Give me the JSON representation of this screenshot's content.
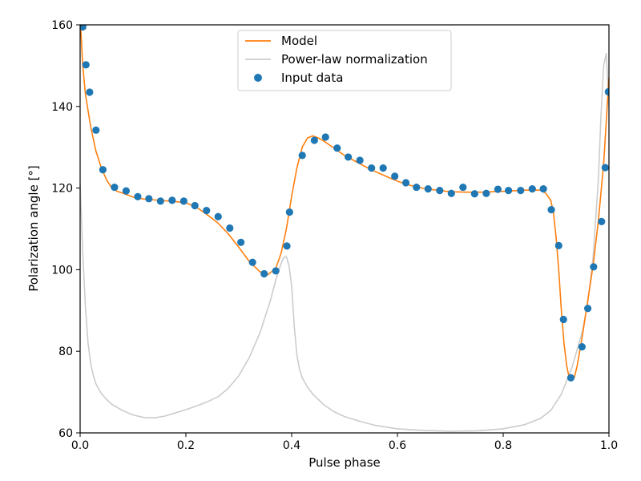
{
  "chart_data": {
    "type": "line",
    "xlabel": "Pulse phase",
    "ylabel": "Polarization angle [°]",
    "xlim": [
      0,
      1
    ],
    "ylim": [
      60,
      160
    ],
    "xticks": [
      "0.0",
      "0.2",
      "0.4",
      "0.6",
      "0.8",
      "1.0"
    ],
    "yticks": [
      "60",
      "80",
      "100",
      "120",
      "140",
      "160"
    ],
    "grid": false,
    "legend_position": "top-center",
    "series": [
      {
        "name": "Model",
        "kind": "line",
        "color": "#ff7f0e",
        "x": [
          0.0,
          0.005,
          0.01,
          0.02,
          0.03,
          0.04,
          0.05,
          0.06,
          0.07,
          0.08,
          0.1,
          0.12,
          0.15,
          0.18,
          0.2,
          0.22,
          0.24,
          0.26,
          0.28,
          0.3,
          0.32,
          0.34,
          0.355,
          0.37,
          0.38,
          0.39,
          0.4,
          0.41,
          0.42,
          0.43,
          0.44,
          0.45,
          0.46,
          0.48,
          0.5,
          0.52,
          0.55,
          0.58,
          0.6,
          0.62,
          0.65,
          0.68,
          0.7,
          0.73,
          0.76,
          0.8,
          0.84,
          0.87,
          0.88,
          0.89,
          0.895,
          0.9,
          0.905,
          0.91,
          0.915,
          0.92,
          0.925,
          0.93,
          0.935,
          0.94,
          0.95,
          0.96,
          0.97,
          0.98,
          0.99,
          1.0
        ],
        "y": [
          162,
          150,
          143,
          135,
          129,
          125,
          122,
          120,
          119.2,
          118.8,
          117.8,
          117.3,
          117.0,
          116.7,
          116.4,
          115.3,
          113.5,
          111.5,
          108.8,
          105.5,
          102.0,
          99.5,
          98.8,
          100.3,
          104.0,
          110.0,
          118.0,
          125.0,
          130.0,
          132.3,
          132.8,
          132.3,
          131.6,
          129.8,
          128.0,
          126.6,
          124.5,
          122.8,
          121.7,
          120.8,
          119.9,
          119.4,
          119.1,
          119.0,
          119.0,
          119.2,
          119.5,
          119.5,
          118.8,
          117.0,
          114.0,
          108.0,
          100.0,
          90.0,
          82.0,
          76.5,
          73.4,
          72.8,
          73.8,
          76.5,
          84.0,
          92.5,
          101.0,
          112.0,
          126.0,
          147.0
        ]
      },
      {
        "name": "Power-law normalization",
        "kind": "line",
        "color": "#cccccc",
        "x": [
          0.0,
          0.005,
          0.01,
          0.015,
          0.02,
          0.025,
          0.03,
          0.035,
          0.04,
          0.05,
          0.06,
          0.08,
          0.1,
          0.12,
          0.14,
          0.16,
          0.18,
          0.2,
          0.22,
          0.24,
          0.26,
          0.28,
          0.3,
          0.32,
          0.34,
          0.36,
          0.37,
          0.38,
          0.385,
          0.39,
          0.395,
          0.4,
          0.405,
          0.41,
          0.415,
          0.42,
          0.43,
          0.44,
          0.46,
          0.48,
          0.5,
          0.53,
          0.56,
          0.6,
          0.65,
          0.7,
          0.75,
          0.8,
          0.84,
          0.87,
          0.89,
          0.91,
          0.93,
          0.95,
          0.96,
          0.97,
          0.98,
          0.985,
          0.99,
          0.995,
          1.0
        ],
        "y": [
          121,
          104,
          91,
          82,
          77,
          74,
          72,
          70.8,
          69.7,
          68.2,
          67.0,
          65.5,
          64.4,
          63.8,
          63.7,
          64.1,
          64.9,
          65.7,
          66.6,
          67.6,
          68.8,
          70.9,
          74.0,
          78.5,
          84.5,
          92.5,
          97.5,
          101.5,
          103.0,
          103.2,
          101.0,
          96.0,
          86.0,
          79.0,
          75.5,
          73.5,
          71.2,
          69.5,
          67.0,
          65.2,
          64.0,
          62.8,
          61.8,
          61.0,
          60.6,
          60.4,
          60.5,
          61.0,
          62.0,
          63.5,
          65.5,
          69.5,
          76.0,
          85.0,
          92.0,
          103.0,
          122.0,
          138.0,
          150.0,
          153.0,
          140.0
        ]
      },
      {
        "name": "Input data",
        "kind": "scatter",
        "color": "#1f77b4",
        "x": [
          0.005,
          0.011,
          0.018,
          0.03,
          0.043,
          0.065,
          0.087,
          0.109,
          0.13,
          0.152,
          0.174,
          0.196,
          0.217,
          0.239,
          0.261,
          0.283,
          0.304,
          0.326,
          0.348,
          0.37,
          0.391,
          0.396,
          0.42,
          0.443,
          0.464,
          0.486,
          0.507,
          0.529,
          0.551,
          0.573,
          0.595,
          0.616,
          0.636,
          0.658,
          0.68,
          0.702,
          0.724,
          0.746,
          0.768,
          0.79,
          0.81,
          0.833,
          0.855,
          0.876,
          0.891,
          0.905,
          0.914,
          0.928,
          0.949,
          0.96,
          0.971,
          0.986,
          0.993,
          0.999
        ],
        "y": [
          159.5,
          150.2,
          143.5,
          134.2,
          124.5,
          120.2,
          119.3,
          117.9,
          117.4,
          116.8,
          117.0,
          116.8,
          115.7,
          114.5,
          113.0,
          110.2,
          106.7,
          101.8,
          99.0,
          99.7,
          105.8,
          114.1,
          128.0,
          131.7,
          132.5,
          129.8,
          127.6,
          126.8,
          124.9,
          124.9,
          122.9,
          121.3,
          120.2,
          119.8,
          119.4,
          118.7,
          120.2,
          118.6,
          118.7,
          119.7,
          119.4,
          119.4,
          119.8,
          119.8,
          114.7,
          105.9,
          87.8,
          73.5,
          81.1,
          90.5,
          100.7,
          111.8,
          125.0,
          143.6
        ]
      }
    ]
  }
}
